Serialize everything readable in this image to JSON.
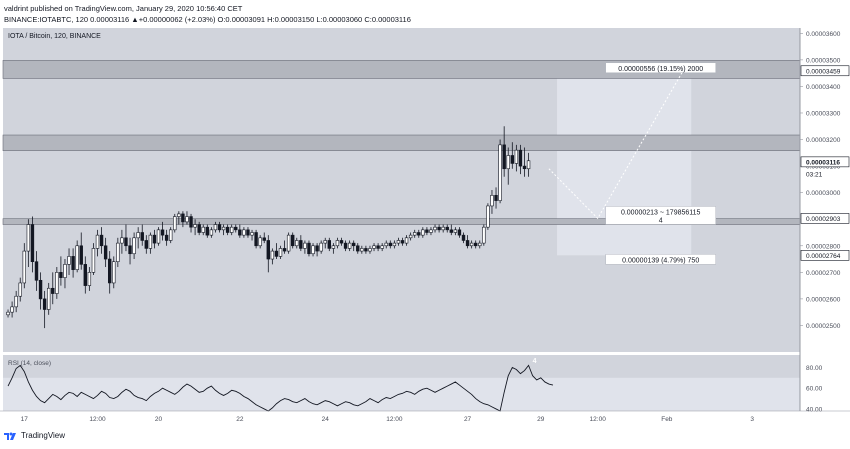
{
  "header": {
    "published": "valdrint published on TradingView.com, January 29, 2020 10:56:40 CET",
    "ohlc": "BINANCE:IOTABTC, 120  0.00003116 ▲+0.00000062 (+2.03%) O:0.00003091 H:0.00003150 L:0.00003060 C:0.00003116"
  },
  "footer": {
    "brand": "TradingView",
    "logo_icon": "tradingview-logo-icon"
  },
  "colors": {
    "pane_bg": "#d1d4dc",
    "zone_fill": "#b3b6be",
    "projection_box": "#e0e3eb",
    "candle": "#131722",
    "rsi_band": "#e0e3eb"
  },
  "chart_data": {
    "type": "candlestick",
    "title": "IOTA / Bitcoin, 120, BINANCE",
    "symbol": "BINANCE:IOTABTC",
    "interval": "120",
    "ylim": [
      2.4e-05,
      3.62e-05
    ],
    "price_ticks": [
      "0.00003600",
      "0.00003500",
      "0.00003400",
      "0.00003300",
      "0.00003200",
      "0.00003100",
      "0.00003000",
      "0.00002900",
      "0.00002800",
      "0.00002700",
      "0.00002600",
      "0.00002500"
    ],
    "tick_values": [
      3.6e-05,
      3.5e-05,
      3.4e-05,
      3.3e-05,
      3.2e-05,
      3.1e-05,
      3e-05,
      2.9e-05,
      2.8e-05,
      2.7e-05,
      2.6e-05,
      2.5e-05
    ],
    "price_labels": [
      {
        "value": 3.459e-05,
        "text": "0.00003459",
        "style": "box"
      },
      {
        "value": 3.116e-05,
        "text": "0.00003116",
        "style": "current"
      },
      {
        "value": 3.07e-05,
        "text": "03:21",
        "style": "countdown"
      },
      {
        "value": 2.903e-05,
        "text": "0.00002903",
        "style": "box"
      },
      {
        "value": 2.764e-05,
        "text": "0.00002764",
        "style": "box"
      }
    ],
    "x_ticks": [
      "17",
      "12:00",
      "20",
      "22",
      "24",
      "12:00",
      "27",
      "29",
      "12:00",
      "Feb",
      "3"
    ],
    "x_tick_index": [
      4,
      22,
      37,
      57,
      78,
      95,
      113,
      131,
      145,
      162,
      183
    ],
    "zones": [
      {
        "low": 3.43e-05,
        "high": 3.498e-05
      },
      {
        "low": 3.158e-05,
        "high": 3.217e-05
      },
      {
        "low": 2.88e-05,
        "high": 2.902e-05
      }
    ],
    "projection": {
      "start_index": 135,
      "end_index": 168,
      "pivot_index": 145,
      "top": 3.459e-05,
      "bottom": 2.764e-05,
      "path": [
        {
          "i": 133,
          "p": 3.09e-05
        },
        {
          "i": 145,
          "p": 2.903e-05
        },
        {
          "i": 166,
          "p": 3.459e-05
        }
      ],
      "labels": [
        {
          "text": "0.00000556 (19.15%) 2000",
          "value": 3.459e-05
        },
        {
          "text": "0.00000213 ~ 179856115",
          "sub": "4",
          "value": 2.903e-05
        },
        {
          "text": "0.00000139 (4.79%) 750",
          "value": 2.764e-05
        }
      ]
    },
    "candles": [
      [
        2.54e-05,
        2.56e-05,
        2.53e-05,
        2.55e-05
      ],
      [
        2.55e-05,
        2.59e-05,
        2.53e-05,
        2.57e-05
      ],
      [
        2.57e-05,
        2.63e-05,
        2.55e-05,
        2.61e-05
      ],
      [
        2.61e-05,
        2.68e-05,
        2.59e-05,
        2.66e-05
      ],
      [
        2.66e-05,
        2.81e-05,
        2.64e-05,
        2.78e-05
      ],
      [
        2.78e-05,
        2.9e-05,
        2.72e-05,
        2.88e-05
      ],
      [
        2.88e-05,
        2.91e-05,
        2.7e-05,
        2.74e-05
      ],
      [
        2.74e-05,
        2.78e-05,
        2.63e-05,
        2.67e-05
      ],
      [
        2.67e-05,
        2.7e-05,
        2.56e-05,
        2.6e-05
      ],
      [
        2.6e-05,
        2.63e-05,
        2.49e-05,
        2.56e-05
      ],
      [
        2.56e-05,
        2.66e-05,
        2.54e-05,
        2.64e-05
      ],
      [
        2.64e-05,
        2.7e-05,
        2.58e-05,
        2.62e-05
      ],
      [
        2.62e-05,
        2.72e-05,
        2.6e-05,
        2.7e-05
      ],
      [
        2.7e-05,
        2.76e-05,
        2.65e-05,
        2.68e-05
      ],
      [
        2.68e-05,
        2.75e-05,
        2.64e-05,
        2.73e-05
      ],
      [
        2.73e-05,
        2.79e-05,
        2.69e-05,
        2.76e-05
      ],
      [
        2.76e-05,
        2.79e-05,
        2.68e-05,
        2.71e-05
      ],
      [
        2.71e-05,
        2.82e-05,
        2.7e-05,
        2.8e-05
      ],
      [
        2.8e-05,
        2.85e-05,
        2.71e-05,
        2.73e-05
      ],
      [
        2.73e-05,
        2.76e-05,
        2.62e-05,
        2.65e-05
      ],
      [
        2.65e-05,
        2.72e-05,
        2.63e-05,
        2.7e-05
      ],
      [
        2.7e-05,
        2.81e-05,
        2.69e-05,
        2.79e-05
      ],
      [
        2.79e-05,
        2.86e-05,
        2.76e-05,
        2.84e-05
      ],
      [
        2.84e-05,
        2.87e-05,
        2.77e-05,
        2.8e-05
      ],
      [
        2.8e-05,
        2.83e-05,
        2.72e-05,
        2.75e-05
      ],
      [
        2.75e-05,
        2.78e-05,
        2.62e-05,
        2.66e-05
      ],
      [
        2.66e-05,
        2.76e-05,
        2.64e-05,
        2.74e-05
      ],
      [
        2.74e-05,
        2.83e-05,
        2.72e-05,
        2.81e-05
      ],
      [
        2.81e-05,
        2.86e-05,
        2.77e-05,
        2.83e-05
      ],
      [
        2.83e-05,
        2.88e-05,
        2.78e-05,
        2.8e-05
      ],
      [
        2.8e-05,
        2.83e-05,
        2.73e-05,
        2.77e-05
      ],
      [
        2.77e-05,
        2.85e-05,
        2.75e-05,
        2.83e-05
      ],
      [
        2.83e-05,
        2.87e-05,
        2.79e-05,
        2.85e-05
      ],
      [
        2.85e-05,
        2.88e-05,
        2.8e-05,
        2.82e-05
      ],
      [
        2.82e-05,
        2.84e-05,
        2.77e-05,
        2.79e-05
      ],
      [
        2.79e-05,
        2.85e-05,
        2.77e-05,
        2.84e-05
      ],
      [
        2.84e-05,
        2.86e-05,
        2.79e-05,
        2.81e-05
      ],
      [
        2.81e-05,
        2.87e-05,
        2.8e-05,
        2.86e-05
      ],
      [
        2.86e-05,
        2.89e-05,
        2.82e-05,
        2.84e-05
      ],
      [
        2.84e-05,
        2.86e-05,
        2.8e-05,
        2.82e-05
      ],
      [
        2.82e-05,
        2.87e-05,
        2.81e-05,
        2.86e-05
      ],
      [
        2.86e-05,
        2.92e-05,
        2.85e-05,
        2.91e-05
      ],
      [
        2.91e-05,
        2.93e-05,
        2.88e-05,
        2.92e-05
      ],
      [
        2.92e-05,
        2.93e-05,
        2.87e-05,
        2.89e-05
      ],
      [
        2.89e-05,
        2.93e-05,
        2.88e-05,
        2.91e-05
      ],
      [
        2.91e-05,
        2.92e-05,
        2.85e-05,
        2.87e-05
      ],
      [
        2.87e-05,
        2.9e-05,
        2.84e-05,
        2.88e-05
      ],
      [
        2.88e-05,
        2.89e-05,
        2.84e-05,
        2.85e-05
      ],
      [
        2.85e-05,
        2.88e-05,
        2.84e-05,
        2.87e-05
      ],
      [
        2.87e-05,
        2.88e-05,
        2.83e-05,
        2.84e-05
      ],
      [
        2.84e-05,
        2.87e-05,
        2.83e-05,
        2.86e-05
      ],
      [
        2.86e-05,
        2.89e-05,
        2.85e-05,
        2.88e-05
      ],
      [
        2.88e-05,
        2.89e-05,
        2.85e-05,
        2.86e-05
      ],
      [
        2.86e-05,
        2.88e-05,
        2.84e-05,
        2.87e-05
      ],
      [
        2.87e-05,
        2.88e-05,
        2.84e-05,
        2.85e-05
      ],
      [
        2.85e-05,
        2.88e-05,
        2.84e-05,
        2.87e-05
      ],
      [
        2.87e-05,
        2.88e-05,
        2.85e-05,
        2.86e-05
      ],
      [
        2.86e-05,
        2.88e-05,
        2.83e-05,
        2.84e-05
      ],
      [
        2.84e-05,
        2.87e-05,
        2.83e-05,
        2.86e-05
      ],
      [
        2.86e-05,
        2.87e-05,
        2.83e-05,
        2.84e-05
      ],
      [
        2.84e-05,
        2.86e-05,
        2.82e-05,
        2.85e-05
      ],
      [
        2.85e-05,
        2.86e-05,
        2.79e-05,
        2.8e-05
      ],
      [
        2.8e-05,
        2.84e-05,
        2.79e-05,
        2.83e-05
      ],
      [
        2.83e-05,
        2.85e-05,
        2.81e-05,
        2.82e-05
      ],
      [
        2.82e-05,
        2.84e-05,
        2.7e-05,
        2.75e-05
      ],
      [
        2.75e-05,
        2.79e-05,
        2.73e-05,
        2.78e-05
      ],
      [
        2.78e-05,
        2.81e-05,
        2.75e-05,
        2.76e-05
      ],
      [
        2.76e-05,
        2.8e-05,
        2.75e-05,
        2.79e-05
      ],
      [
        2.79e-05,
        2.82e-05,
        2.77e-05,
        2.78e-05
      ],
      [
        2.78e-05,
        2.85e-05,
        2.77e-05,
        2.84e-05
      ],
      [
        2.84e-05,
        2.85e-05,
        2.79e-05,
        2.8e-05
      ],
      [
        2.8e-05,
        2.83e-05,
        2.79e-05,
        2.82e-05
      ],
      [
        2.82e-05,
        2.84e-05,
        2.78e-05,
        2.79e-05
      ],
      [
        2.79e-05,
        2.82e-05,
        2.77e-05,
        2.81e-05
      ],
      [
        2.81e-05,
        2.82e-05,
        2.76e-05,
        2.77e-05
      ],
      [
        2.77e-05,
        2.81e-05,
        2.76e-05,
        2.8e-05
      ],
      [
        2.8e-05,
        2.81e-05,
        2.76e-05,
        2.78e-05
      ],
      [
        2.78e-05,
        2.82e-05,
        2.77e-05,
        2.81e-05
      ],
      [
        2.81e-05,
        2.83e-05,
        2.79e-05,
        2.82e-05
      ],
      [
        2.82e-05,
        2.83e-05,
        2.78e-05,
        2.79e-05
      ],
      [
        2.79e-05,
        2.81e-05,
        2.77e-05,
        2.8e-05
      ],
      [
        2.8e-05,
        2.83e-05,
        2.79e-05,
        2.82e-05
      ],
      [
        2.82e-05,
        2.83e-05,
        2.8e-05,
        2.81e-05
      ],
      [
        2.81e-05,
        2.82e-05,
        2.78e-05,
        2.79e-05
      ],
      [
        2.79e-05,
        2.82e-05,
        2.78e-05,
        2.81e-05
      ],
      [
        2.81e-05,
        2.82e-05,
        2.78e-05,
        2.8e-05
      ],
      [
        2.8e-05,
        2.81e-05,
        2.77e-05,
        2.78e-05
      ],
      [
        2.78e-05,
        2.8e-05,
        2.77e-05,
        2.79e-05
      ],
      [
        2.79e-05,
        2.8e-05,
        2.77e-05,
        2.78e-05
      ],
      [
        2.78e-05,
        2.8e-05,
        2.77e-05,
        2.79e-05
      ],
      [
        2.79e-05,
        2.81e-05,
        2.78e-05,
        2.8e-05
      ],
      [
        2.8e-05,
        2.81e-05,
        2.78e-05,
        2.79e-05
      ],
      [
        2.79e-05,
        2.81e-05,
        2.78e-05,
        2.8e-05
      ],
      [
        2.8e-05,
        2.82e-05,
        2.79e-05,
        2.81e-05
      ],
      [
        2.81e-05,
        2.82e-05,
        2.79e-05,
        2.8e-05
      ],
      [
        2.8e-05,
        2.82e-05,
        2.79e-05,
        2.81e-05
      ],
      [
        2.81e-05,
        2.83e-05,
        2.8e-05,
        2.82e-05
      ],
      [
        2.82e-05,
        2.83e-05,
        2.8e-05,
        2.81e-05
      ],
      [
        2.81e-05,
        2.84e-05,
        2.8e-05,
        2.83e-05
      ],
      [
        2.83e-05,
        2.85e-05,
        2.82e-05,
        2.84e-05
      ],
      [
        2.84e-05,
        2.86e-05,
        2.83e-05,
        2.85e-05
      ],
      [
        2.85e-05,
        2.86e-05,
        2.83e-05,
        2.84e-05
      ],
      [
        2.84e-05,
        2.87e-05,
        2.83e-05,
        2.86e-05
      ],
      [
        2.86e-05,
        2.87e-05,
        2.84e-05,
        2.85e-05
      ],
      [
        2.85e-05,
        2.87e-05,
        2.84e-05,
        2.86e-05
      ],
      [
        2.86e-05,
        2.88e-05,
        2.85e-05,
        2.87e-05
      ],
      [
        2.87e-05,
        2.88e-05,
        2.85e-05,
        2.86e-05
      ],
      [
        2.86e-05,
        2.88e-05,
        2.85e-05,
        2.87e-05
      ],
      [
        2.87e-05,
        2.88e-05,
        2.85e-05,
        2.86e-05
      ],
      [
        2.86e-05,
        2.88e-05,
        2.84e-05,
        2.85e-05
      ],
      [
        2.85e-05,
        2.87e-05,
        2.84e-05,
        2.86e-05
      ],
      [
        2.86e-05,
        2.87e-05,
        2.83e-05,
        2.84e-05
      ],
      [
        2.84e-05,
        2.85e-05,
        2.81e-05,
        2.82e-05
      ],
      [
        2.82e-05,
        2.84e-05,
        2.79e-05,
        2.8e-05
      ],
      [
        2.8e-05,
        2.82e-05,
        2.79e-05,
        2.81e-05
      ],
      [
        2.81e-05,
        2.82e-05,
        2.79e-05,
        2.8e-05
      ],
      [
        2.8e-05,
        2.82e-05,
        2.79e-05,
        2.81e-05
      ],
      [
        2.81e-05,
        2.88e-05,
        2.8e-05,
        2.87e-05
      ],
      [
        2.87e-05,
        2.96e-05,
        2.86e-05,
        2.95e-05
      ],
      [
        2.95e-05,
        3.01e-05,
        2.92e-05,
        2.99e-05
      ],
      [
        2.99e-05,
        3.02e-05,
        2.94e-05,
        2.97e-05
      ],
      [
        2.97e-05,
        3.2e-05,
        2.96e-05,
        3.18e-05
      ],
      [
        3.18e-05,
        3.25e-05,
        3.06e-05,
        3.09e-05
      ],
      [
        3.09e-05,
        3.17e-05,
        3.03e-05,
        3.14e-05
      ],
      [
        3.14e-05,
        3.19e-05,
        3.09e-05,
        3.11e-05
      ],
      [
        3.11e-05,
        3.18e-05,
        3.08e-05,
        3.16e-05
      ],
      [
        3.16e-05,
        3.18e-05,
        3.07e-05,
        3.1e-05
      ],
      [
        3.1e-05,
        3.17e-05,
        3.06e-05,
        3.09e-05
      ],
      [
        3.09e-05,
        3.15e-05,
        3.06e-05,
        3.12e-05
      ]
    ],
    "rsi": {
      "label": "RSI (14, close)",
      "ticks": [
        80.0,
        60.0,
        40.0
      ],
      "ylim": [
        38,
        92
      ],
      "band": [
        30,
        70
      ],
      "marker": "4",
      "values": [
        62,
        70,
        79,
        82,
        76,
        66,
        58,
        52,
        48,
        46,
        50,
        54,
        52,
        49,
        53,
        56,
        55,
        52,
        56,
        54,
        52,
        50,
        53,
        57,
        55,
        51,
        50,
        52,
        56,
        59,
        57,
        53,
        51,
        50,
        48,
        52,
        55,
        57,
        60,
        58,
        56,
        54,
        57,
        61,
        64,
        62,
        59,
        56,
        57,
        60,
        62,
        58,
        55,
        53,
        55,
        58,
        57,
        55,
        52,
        50,
        47,
        44,
        42,
        40,
        38,
        41,
        45,
        48,
        50,
        49,
        47,
        46,
        48,
        50,
        47,
        45,
        44,
        46,
        48,
        47,
        45,
        43,
        45,
        47,
        46,
        44,
        43,
        45,
        47,
        50,
        48,
        46,
        49,
        51,
        50,
        52,
        54,
        55,
        57,
        56,
        54,
        57,
        59,
        60,
        58,
        56,
        58,
        60,
        62,
        64,
        66,
        63,
        60,
        57,
        54,
        50,
        47,
        45,
        44,
        42,
        40,
        38,
        56,
        72,
        80,
        78,
        74,
        77,
        82,
        72,
        68,
        70,
        66,
        64,
        63
      ]
    }
  }
}
